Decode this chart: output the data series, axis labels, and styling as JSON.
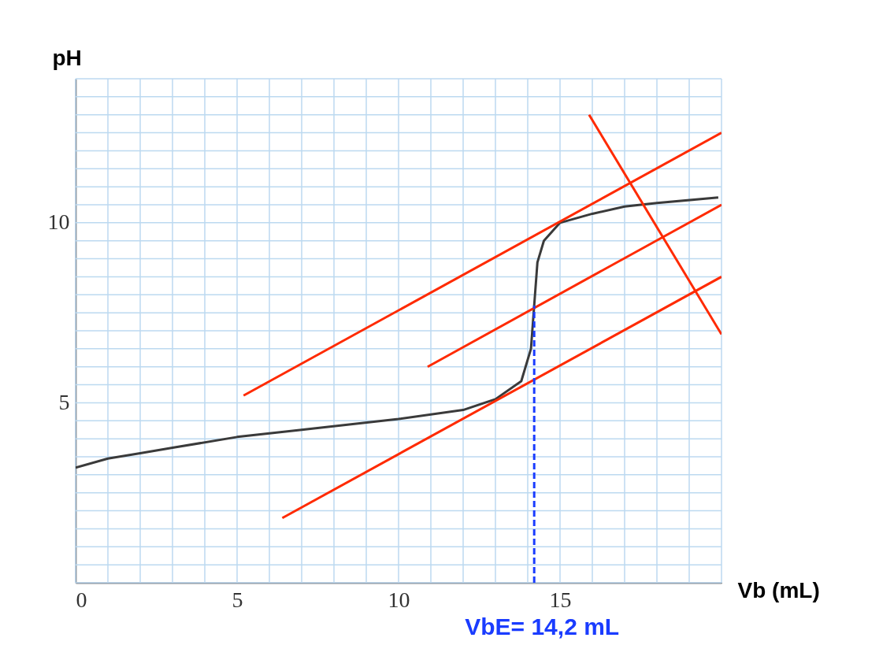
{
  "chart_data": {
    "type": "line",
    "xlabel": "Vb (mL)",
    "ylabel": "pH",
    "xlim": [
      0,
      20
    ],
    "ylim": [
      0,
      14
    ],
    "xticks": [
      0,
      {
        "value": 1,
        "label": null
      },
      {
        "value": 2,
        "label": null
      },
      {
        "value": 3,
        "label": null
      },
      {
        "value": 4,
        "label": null
      },
      5,
      {
        "value": 6,
        "label": null
      },
      {
        "value": 7,
        "label": null
      },
      {
        "value": 8,
        "label": null
      },
      {
        "value": 9,
        "label": null
      },
      10,
      {
        "value": 11,
        "label": null
      },
      {
        "value": 12,
        "label": null
      },
      {
        "value": 13,
        "label": null
      },
      {
        "value": 14,
        "label": null
      },
      15,
      {
        "value": 16,
        "label": null
      },
      {
        "value": 17,
        "label": null
      },
      {
        "value": 18,
        "label": null
      },
      {
        "value": 19,
        "label": null
      },
      {
        "value": 20,
        "label": null
      }
    ],
    "yticks": [
      {
        "value": 0,
        "label": null
      },
      {
        "value": 0.5,
        "label": null
      },
      {
        "value": 1,
        "label": null
      },
      {
        "value": 1.5,
        "label": null
      },
      {
        "value": 2,
        "label": null
      },
      {
        "value": 2.5,
        "label": null
      },
      {
        "value": 3,
        "label": null
      },
      {
        "value": 3.5,
        "label": null
      },
      {
        "value": 4,
        "label": null
      },
      {
        "value": 4.5,
        "label": null
      },
      5,
      {
        "value": 5.5,
        "label": null
      },
      {
        "value": 6,
        "label": null
      },
      {
        "value": 6.5,
        "label": null
      },
      {
        "value": 7,
        "label": null
      },
      {
        "value": 7.5,
        "label": null
      },
      {
        "value": 8,
        "label": null
      },
      {
        "value": 8.5,
        "label": null
      },
      {
        "value": 9,
        "label": null
      },
      {
        "value": 9.5,
        "label": null
      },
      10,
      {
        "value": 10.5,
        "label": null
      },
      {
        "value": 11,
        "label": null
      },
      {
        "value": 11.5,
        "label": null
      },
      {
        "value": 12,
        "label": null
      },
      {
        "value": 12.5,
        "label": null
      },
      {
        "value": 13,
        "label": null
      },
      {
        "value": 13.5,
        "label": null
      },
      {
        "value": 14,
        "label": null
      }
    ],
    "grid": true,
    "series": [
      {
        "color": "#3a3a3a",
        "x": [
          0,
          1,
          2,
          3,
          5,
          7,
          10,
          12,
          13,
          13.8,
          14.1,
          14.2,
          14.3,
          14.5,
          15,
          16,
          17,
          18,
          19.9
        ],
        "values": [
          3.2,
          3.45,
          3.6,
          3.75,
          4.05,
          4.25,
          4.55,
          4.8,
          5.1,
          5.6,
          6.5,
          7.7,
          8.9,
          9.5,
          10.0,
          10.25,
          10.45,
          10.55,
          10.7
        ]
      },
      {
        "type": "line",
        "color": "#ff2a00",
        "x": [
          5.2,
          20
        ],
        "values": [
          5.2,
          12.5
        ]
      },
      {
        "type": "line",
        "color": "#ff2a00",
        "x": [
          10.9,
          20
        ],
        "values": [
          6.0,
          10.5
        ]
      },
      {
        "type": "line",
        "color": "#ff2a00",
        "x": [
          6.4,
          20
        ],
        "values": [
          1.8,
          8.5
        ]
      },
      {
        "type": "line",
        "color": "#ff2a00",
        "x": [
          15.9,
          20
        ],
        "values": [
          13.0,
          6.9
        ]
      },
      {
        "type": "line",
        "color": "#1a3cff",
        "line_style": "dashed",
        "x": [
          14.2,
          14.2
        ],
        "values": [
          0,
          7.7
        ]
      }
    ],
    "annotations": [
      {
        "text": "VbE= 14,2 mL",
        "x": 14.2,
        "y": 0
      }
    ]
  }
}
